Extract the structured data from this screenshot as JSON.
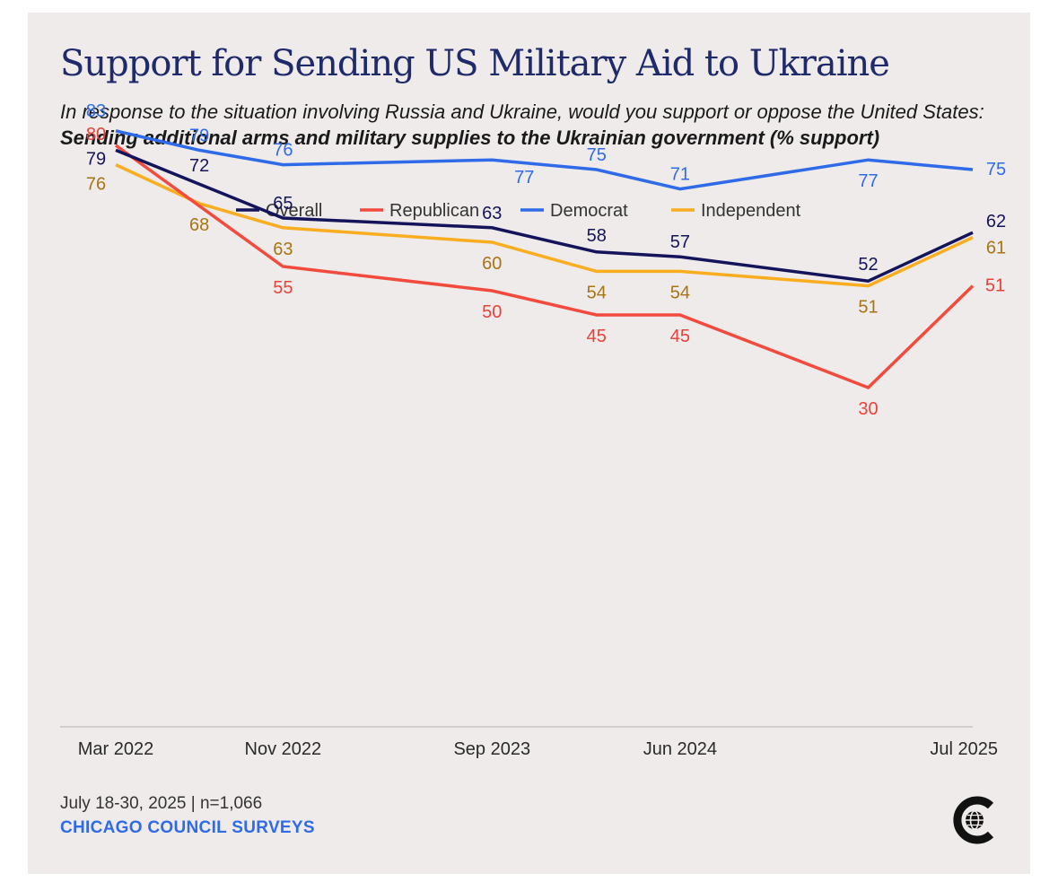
{
  "title": "Support for Sending US Military Aid to Ukraine",
  "subtitle": {
    "italic": "In response to the situation involving Russia and Ukraine, would you support or oppose the United States: ",
    "bold": "Sending additional arms and military supplies to the Ukrainian government (% support)"
  },
  "footer": {
    "date": "July 18-30, 2025 | n=1,066",
    "source": "CHICAGO COUNCIL SURVEYS"
  },
  "logo": {
    "icon": "chicago-council-globe-logo"
  },
  "chart_data": {
    "type": "line",
    "title": "Support for Sending US Military Aid to Ukraine",
    "xlabel": "",
    "ylabel": "% support",
    "ylim": [
      0,
      100
    ],
    "grid": false,
    "legend_position": "top",
    "x": [
      0,
      8,
      18,
      23,
      27,
      37,
      41
    ],
    "x_unit": "months since Mar 2022",
    "xticks": [
      {
        "x": 0,
        "label": "Mar 2022"
      },
      {
        "x": 8,
        "label": "Nov 2022"
      },
      {
        "x": 18,
        "label": "Sep 2023"
      },
      {
        "x": 27,
        "label": "Jun 2024"
      },
      {
        "x": 41,
        "label": "Jul 2025"
      }
    ],
    "series": [
      {
        "name": "Overall",
        "color": "#14145a",
        "points": [
          [
            0,
            79
          ],
          [
            4,
            72
          ],
          [
            8,
            65
          ],
          [
            18,
            63
          ],
          [
            23,
            58
          ],
          [
            27,
            57
          ],
          [
            36,
            52
          ],
          [
            41,
            62
          ]
        ],
        "labels": [
          "79",
          "72",
          "65",
          "63",
          "58",
          "57",
          "52",
          "62"
        ],
        "label_color": "#14145a"
      },
      {
        "name": "Republican",
        "color": "#f24a3d",
        "points": [
          [
            0,
            80
          ],
          [
            8,
            55
          ],
          [
            18,
            50
          ],
          [
            23,
            45
          ],
          [
            27,
            45
          ],
          [
            36,
            30
          ],
          [
            41,
            51
          ]
        ],
        "labels": [
          "80",
          "55",
          "50",
          "45",
          "45",
          "30",
          "51"
        ],
        "label_color": "#e8413a"
      },
      {
        "name": "Democrat",
        "color": "#2f6be8",
        "points": [
          [
            0,
            83
          ],
          [
            4,
            79
          ],
          [
            8,
            76
          ],
          [
            18,
            77
          ],
          [
            23,
            75
          ],
          [
            27,
            71
          ],
          [
            36,
            77
          ],
          [
            41,
            75
          ]
        ],
        "labels": [
          "83",
          "79",
          "76",
          "77",
          "75",
          "71",
          "77",
          "75"
        ],
        "label_color": "#2f6be8"
      },
      {
        "name": "Independent",
        "color": "#f9ad1f",
        "points": [
          [
            0,
            76
          ],
          [
            4,
            68
          ],
          [
            8,
            63
          ],
          [
            18,
            60
          ],
          [
            23,
            54
          ],
          [
            27,
            54
          ],
          [
            36,
            51
          ],
          [
            41,
            61
          ]
        ],
        "labels": [
          "76",
          "68",
          "63",
          "60",
          "54",
          "54",
          "51",
          "61"
        ],
        "label_color": "#a87513"
      }
    ]
  }
}
